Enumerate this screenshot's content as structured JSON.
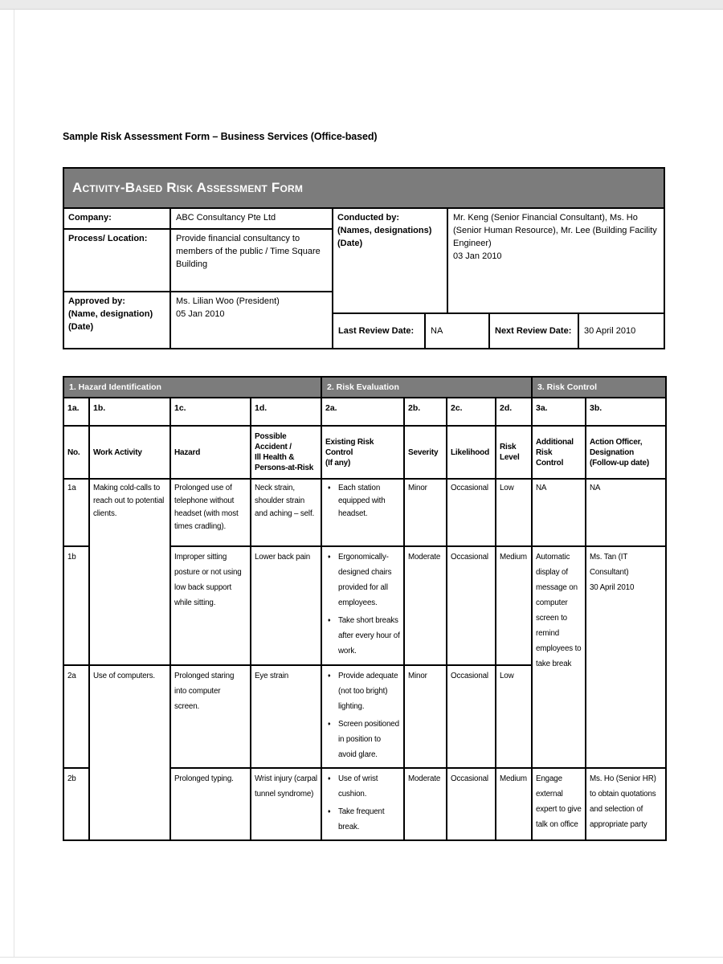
{
  "page_title": "Sample Risk Assessment Form – Business Services (Office-based)",
  "form": {
    "header": "Activity-Based Risk Assessment Form",
    "info": {
      "company_label": "Company:",
      "company_value": "ABC Consultancy Pte Ltd",
      "process_label": "Process/ Location:",
      "process_value": "Provide financial consultancy to members of the public / Time Square Building",
      "approved_label": "Approved by:\n(Name, designation)\n(Date)",
      "approved_value": "Ms. Lilian Woo (President)\n05 Jan 2010",
      "conducted_label": "Conducted by:\n(Names, designations)\n(Date)",
      "conducted_value": "Mr. Keng (Senior Financial Consultant), Ms. Ho (Senior Human Resource), Mr. Lee (Building Facility Engineer)\n03 Jan 2010",
      "last_review_label": "Last Review Date:",
      "last_review_value": "NA",
      "next_review_label": "Next Review Date:",
      "next_review_value": "30 April 2010"
    }
  },
  "risk_table": {
    "sections": [
      "1. Hazard Identification",
      "2. Risk Evaluation",
      "3. Risk Control"
    ],
    "sub_labels": [
      "1a.",
      "1b.",
      "1c.",
      "1d.",
      "2a.",
      "2b.",
      "2c.",
      "2d.",
      "3a.",
      "3b."
    ],
    "columns": [
      "No.",
      "Work Activity",
      "Hazard",
      "Possible Accident /\nIll Health &\nPersons-at-Risk",
      "Existing Risk Control\n(If any)",
      "Severity",
      "Likelihood",
      "Risk\nLevel",
      "Additional\nRisk Control",
      "Action Officer,\nDesignation\n(Follow-up date)"
    ],
    "rows": [
      {
        "no": "1a",
        "work_activity": "Making cold-calls to reach out to potential clients.",
        "hazard": "Prolonged use of telephone without headset (with most times cradling).",
        "possible_accident": "Neck strain, shoulder strain and aching – self.",
        "existing_controls": [
          "Each station equipped with headset."
        ],
        "severity": "Minor",
        "likelihood": "Occasional",
        "risk_level": "Low",
        "additional_control": "NA",
        "action_officer": "NA"
      },
      {
        "no": "1b",
        "work_activity": "",
        "hazard": "Improper sitting posture or not using low back support while sitting.",
        "possible_accident": "Lower back pain",
        "existing_controls": [
          "Ergonomically-designed chairs provided for all employees.",
          "Take short breaks after every hour of work."
        ],
        "severity": "Moderate",
        "likelihood": "Occasional",
        "risk_level": "Medium",
        "additional_control": "Automatic display of message on computer screen to remind employees to take break",
        "action_officer": "Ms. Tan (IT Consultant)\n30 April 2010"
      },
      {
        "no": "2a",
        "work_activity": "Use of computers.",
        "hazard": "Prolonged staring into computer screen.",
        "possible_accident": "Eye strain",
        "existing_controls": [
          "Provide adequate (not too bright) lighting.",
          "Screen positioned in position to avoid glare."
        ],
        "severity": "Minor",
        "likelihood": "Occasional",
        "risk_level": "Low",
        "additional_control": "",
        "action_officer": ""
      },
      {
        "no": "2b",
        "work_activity": "",
        "hazard": "Prolonged typing.",
        "possible_accident": "Wrist injury (carpal tunnel syndrome)",
        "existing_controls": [
          "Use of wrist cushion.",
          "Take frequent break."
        ],
        "severity": "Moderate",
        "likelihood": "Occasional",
        "risk_level": "Medium",
        "additional_control": "Engage external expert to give talk on office",
        "action_officer": "Ms. Ho (Senior HR) to obtain quotations and selection of appropriate party"
      }
    ]
  },
  "icons": {
    "bullet": "♦"
  },
  "colors": {
    "header_gray": "#7c7c7c",
    "border": "#000000",
    "page_background": "#ffffff",
    "frame_gray": "#eaeaea"
  }
}
